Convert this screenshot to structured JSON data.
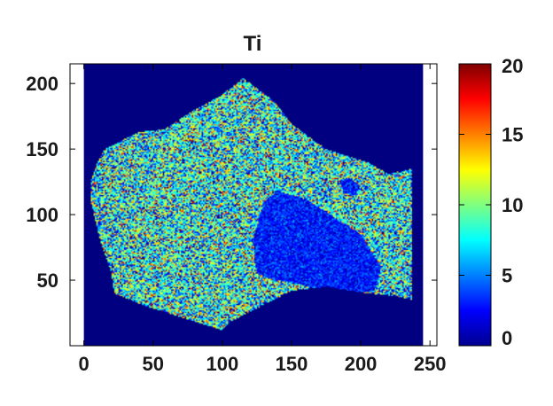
{
  "chart_data": {
    "type": "heatmap",
    "title": "Ti",
    "xlabel": "",
    "ylabel": "",
    "xlim": [
      -10,
      255
    ],
    "ylim": [
      0,
      215
    ],
    "x_ticks": [
      0,
      50,
      100,
      150,
      200,
      250
    ],
    "y_ticks": [
      50,
      100,
      150,
      200
    ],
    "colorbar": {
      "range": [
        0,
        20
      ],
      "ticks": [
        0,
        5,
        10,
        15,
        20
      ],
      "colormap": "jet"
    },
    "background_value": 0,
    "grain_outline": [
      [
        115,
        204
      ],
      [
        128,
        194
      ],
      [
        138,
        186
      ],
      [
        150,
        169
      ],
      [
        175,
        150
      ],
      [
        205,
        140
      ],
      [
        220,
        131
      ],
      [
        237,
        135
      ],
      [
        237,
        35
      ],
      [
        225,
        38
      ],
      [
        205,
        40
      ],
      [
        175,
        45
      ],
      [
        150,
        42
      ],
      [
        105,
        18
      ],
      [
        100,
        12
      ],
      [
        85,
        17
      ],
      [
        45,
        30
      ],
      [
        22,
        40
      ],
      [
        20,
        55
      ],
      [
        12,
        80
      ],
      [
        5,
        110
      ],
      [
        5,
        125
      ],
      [
        10,
        140
      ],
      [
        15,
        150
      ],
      [
        40,
        163
      ],
      [
        58,
        165
      ],
      [
        80,
        180
      ],
      [
        98,
        190
      ]
    ],
    "inclusions": [
      {
        "description": "low-Ti inclusion",
        "outline": [
          [
            130,
            110
          ],
          [
            140,
            118
          ],
          [
            160,
            112
          ],
          [
            175,
            102
          ],
          [
            185,
            95
          ],
          [
            200,
            85
          ],
          [
            215,
            60
          ],
          [
            210,
            42
          ],
          [
            195,
            40
          ],
          [
            170,
            44
          ],
          [
            140,
            50
          ],
          [
            125,
            55
          ],
          [
            122,
            80
          ]
        ],
        "mean_value": 3
      },
      {
        "description": "small low-Ti spot",
        "outline": [
          [
            185,
            125
          ],
          [
            192,
            128
          ],
          [
            200,
            122
          ],
          [
            196,
            115
          ],
          [
            188,
            116
          ]
        ],
        "mean_value": 3
      }
    ],
    "grain_mean_value": 8
  }
}
